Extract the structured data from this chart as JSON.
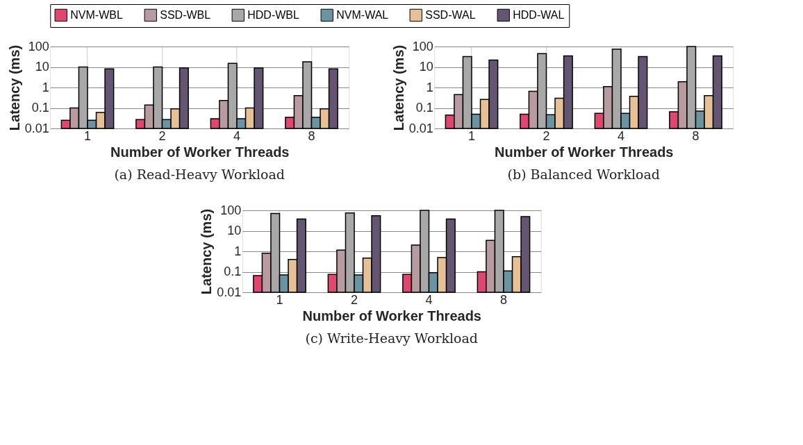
{
  "chart_data": [
    {
      "type": "bar",
      "title": "(a) Read-Heavy Workload",
      "xlabel": "Number of Worker Threads",
      "ylabel": "Latency (ms)",
      "categories": [
        "1",
        "2",
        "4",
        "8"
      ],
      "log": true,
      "ylim": [
        0.01,
        100
      ],
      "yticks": [
        0.01,
        0.1,
        1,
        10,
        100
      ],
      "grid": true,
      "legend": "top",
      "series": [
        {
          "name": "NVM-WBL",
          "color": "#e0476e",
          "values": [
            0.025,
            0.027,
            0.03,
            0.035
          ]
        },
        {
          "name": "SSD-WBL",
          "color": "#b89ba0",
          "values": [
            0.1,
            0.14,
            0.23,
            0.4
          ]
        },
        {
          "name": "HDD-WBL",
          "color": "#a8a8a8",
          "values": [
            10,
            10,
            15,
            18
          ]
        },
        {
          "name": "NVM-WAL",
          "color": "#6b94a3",
          "values": [
            0.025,
            0.027,
            0.03,
            0.035
          ]
        },
        {
          "name": "SSD-WAL",
          "color": "#e6c195",
          "values": [
            0.06,
            0.09,
            0.1,
            0.09
          ]
        },
        {
          "name": "HDD-WAL",
          "color": "#645672",
          "values": [
            8,
            9,
            9,
            8
          ]
        }
      ]
    },
    {
      "type": "bar",
      "title": "(b) Balanced Workload",
      "xlabel": "Number of Worker Threads",
      "ylabel": "Latency (ms)",
      "categories": [
        "1",
        "2",
        "4",
        "8"
      ],
      "log": true,
      "ylim": [
        0.01,
        100
      ],
      "yticks": [
        0.01,
        0.1,
        1,
        10,
        100
      ],
      "grid": true,
      "series": [
        {
          "color": "#e0476e",
          "values": [
            0.045,
            0.05,
            0.055,
            0.065
          ]
        },
        {
          "color": "#b89ba0",
          "values": [
            0.45,
            0.65,
            1.1,
            1.9
          ]
        },
        {
          "color": "#a8a8a8",
          "values": [
            32,
            45,
            75,
            100
          ]
        },
        {
          "color": "#6b94a3",
          "values": [
            0.05,
            0.047,
            0.055,
            0.07
          ]
        },
        {
          "color": "#e6c195",
          "values": [
            0.26,
            0.3,
            0.37,
            0.4
          ]
        },
        {
          "color": "#645672",
          "values": [
            22,
            35,
            32,
            35
          ]
        }
      ]
    },
    {
      "type": "bar",
      "title": "(c) Write-Heavy Workload",
      "xlabel": "Number of Worker Threads",
      "ylabel": "Latency (ms)",
      "categories": [
        "1",
        "2",
        "4",
        "8"
      ],
      "log": true,
      "ylim": [
        0.01,
        100
      ],
      "yticks": [
        0.01,
        0.1,
        1,
        10,
        100
      ],
      "grid": true,
      "series": [
        {
          "color": "#e0476e",
          "values": [
            0.065,
            0.075,
            0.075,
            0.1
          ]
        },
        {
          "color": "#b89ba0",
          "values": [
            0.8,
            1.15,
            2,
            3.4
          ]
        },
        {
          "color": "#a8a8a8",
          "values": [
            70,
            75,
            100,
            100
          ]
        },
        {
          "color": "#6b94a3",
          "values": [
            0.07,
            0.07,
            0.09,
            0.11
          ]
        },
        {
          "color": "#e6c195",
          "values": [
            0.4,
            0.47,
            0.5,
            0.55
          ]
        },
        {
          "color": "#645672",
          "values": [
            38,
            55,
            38,
            50
          ]
        }
      ]
    }
  ]
}
